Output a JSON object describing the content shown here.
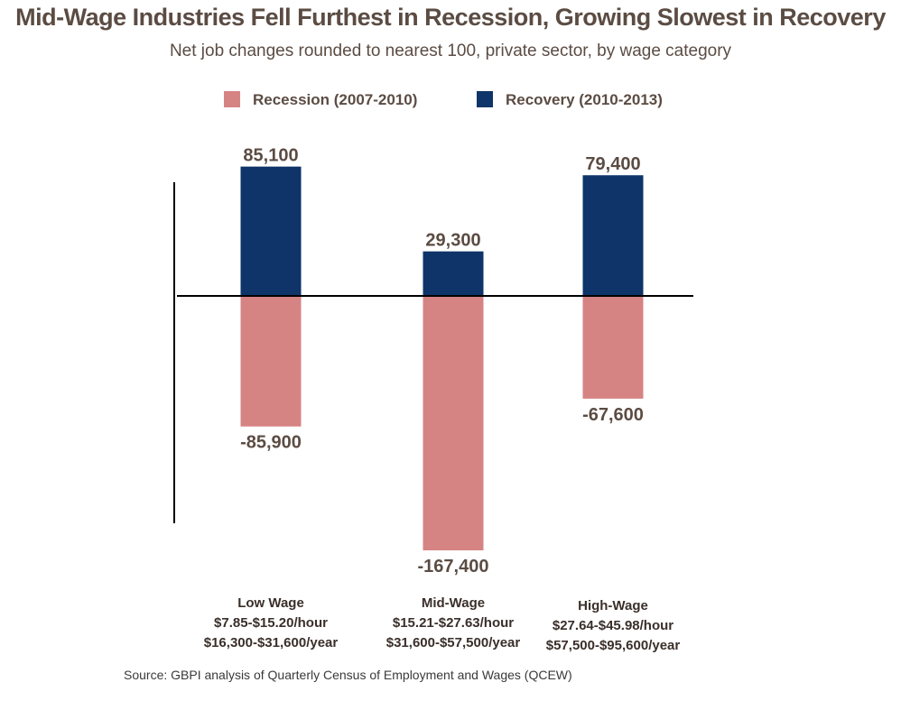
{
  "chart_data": {
    "type": "bar",
    "title": "Mid-Wage Industries Fell Furthest in Recession, Growing Slowest in Recovery",
    "subtitle": "Net job changes rounded to nearest 100, private sector, by wage category",
    "categories": [
      {
        "name": "Low Wage",
        "hourly": "$7.85-$15.20/hour",
        "yearly": "$16,300-$31,600/year"
      },
      {
        "name": "Mid-Wage",
        "hourly": "$15.21-$27.63/hour",
        "yearly": "$31,600-$57,500/year"
      },
      {
        "name": "High-Wage",
        "hourly": "$27.64-$45.98/hour",
        "yearly": "$57,500-$95,600/year"
      }
    ],
    "series": [
      {
        "name": "Recession (2007-2010)",
        "color": "#d68384",
        "values": [
          -85900,
          -167400,
          -67600
        ],
        "labels": [
          "-85,900",
          "-167,400",
          "-67,600"
        ]
      },
      {
        "name": "Recovery (2010-2013)",
        "color": "#0e3469",
        "values": [
          85100,
          29300,
          79400
        ],
        "labels": [
          "85,100",
          "29,300",
          "79,400"
        ]
      }
    ],
    "legend_position": "top-center",
    "grid": false,
    "ylim": [
      -167400,
      85100
    ]
  },
  "source": "Source: GBPI analysis of Quarterly Census of Employment and Wages (QCEW)"
}
